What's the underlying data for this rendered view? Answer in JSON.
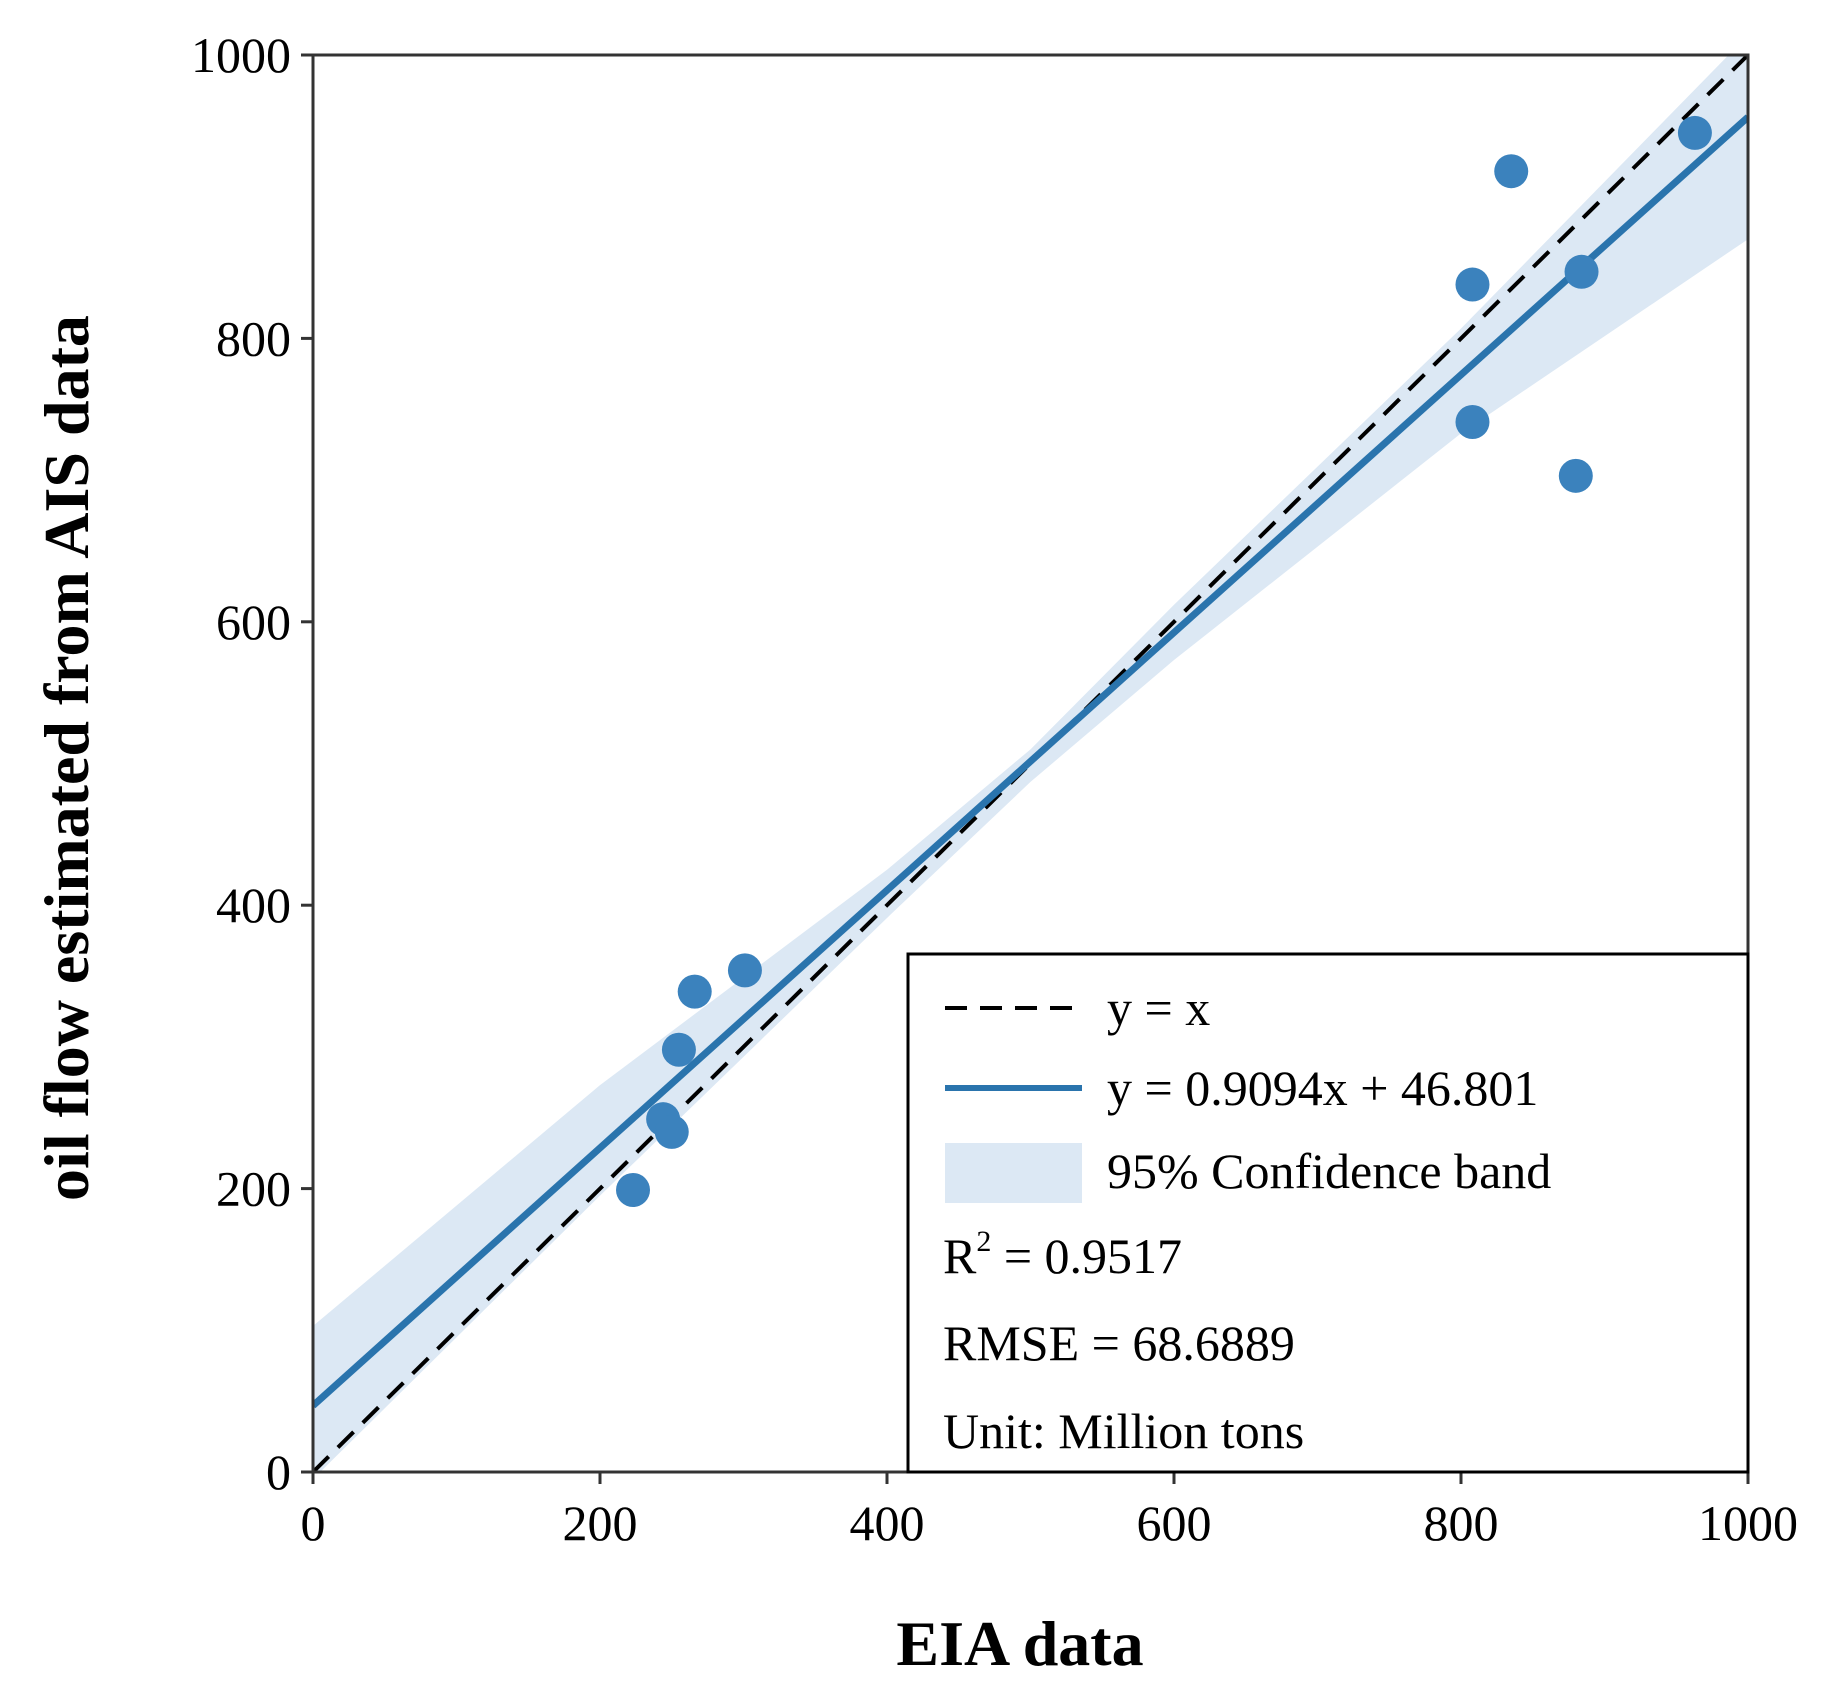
{
  "chart_data": {
    "type": "scatter",
    "title": "",
    "xlabel": "EIA data",
    "ylabel": "oil flow estimated from AIS data",
    "xlim": [
      0,
      1000
    ],
    "ylim": [
      0,
      1000
    ],
    "xticks": [
      "0",
      "200",
      "400",
      "600",
      "800",
      "1000"
    ],
    "yticks": [
      "0",
      "200",
      "400",
      "600",
      "800",
      "1000"
    ],
    "grid": false,
    "points": [
      {
        "x": 223,
        "y": 199
      },
      {
        "x": 244,
        "y": 249
      },
      {
        "x": 250,
        "y": 240
      },
      {
        "x": 255,
        "y": 298
      },
      {
        "x": 266,
        "y": 339
      },
      {
        "x": 301,
        "y": 354
      },
      {
        "x": 808,
        "y": 838
      },
      {
        "x": 808,
        "y": 741
      },
      {
        "x": 835,
        "y": 918
      },
      {
        "x": 880,
        "y": 703
      },
      {
        "x": 884,
        "y": 847
      },
      {
        "x": 963,
        "y": 945
      }
    ],
    "identity_line": {
      "label": "y = x"
    },
    "fit_line": {
      "slope": 0.9094,
      "intercept": 46.801,
      "label": "y = 0.9094x + 46.801"
    },
    "confidence_band": {
      "label": "95% Confidence band",
      "x": [
        0,
        200,
        400,
        500,
        600,
        800,
        1000
      ],
      "lower": [
        -5,
        195,
        391,
        487,
        573,
        733,
        870
      ],
      "upper": [
        103,
        273,
        425,
        510,
        612,
        807,
        1014
      ]
    },
    "legend_position": "bottom-right",
    "stats": {
      "r2_prefix": "R",
      "r2_sup": "2",
      "r2_value": " = 0.9517",
      "rmse": "RMSE = 68.6889",
      "unit": "Unit: Million tons"
    },
    "colors": {
      "points": "#3b82bd",
      "fit": "#2a74ad",
      "band": "#dce8f4",
      "identity": "#000000"
    }
  }
}
